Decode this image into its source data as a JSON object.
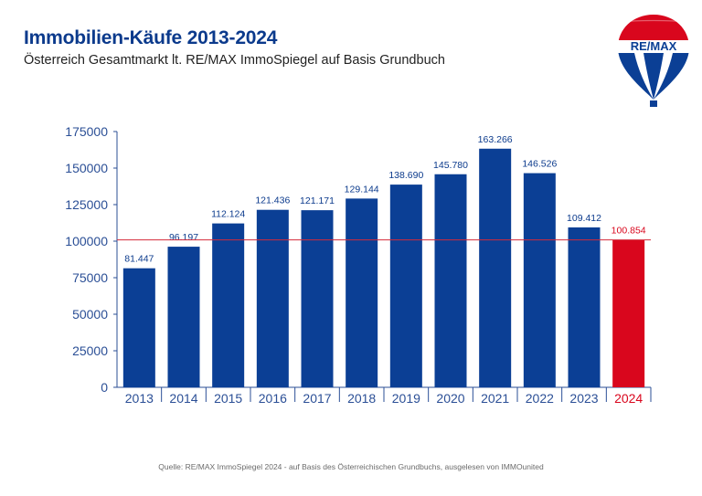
{
  "header": {
    "title": "Immobilien-Käufe 2013-2024",
    "subtitle": "Österreich Gesamtmarkt lt. RE/MAX ImmoSpiegel auf Basis Grundbuch"
  },
  "logo": {
    "text": "RE/MAX",
    "icon": "hot-air-balloon-logo"
  },
  "source_note": "Quelle: RE/MAX ImmoSpiegel 2024 - auf Basis des Österreichischen Grundbuchs, ausgelesen von IMMOunited",
  "colors": {
    "bar": "#0b3f95",
    "highlight_bar": "#d9061d",
    "reference_line": "#d42a3a",
    "label": "#0b3a8c",
    "highlight_label": "#d9061d",
    "axis": "#2b4f96"
  },
  "chart_data": {
    "type": "bar",
    "categories": [
      "2013",
      "2014",
      "2015",
      "2016",
      "2017",
      "2018",
      "2019",
      "2020",
      "2021",
      "2022",
      "2023",
      "2024"
    ],
    "values": [
      81447,
      96197,
      112124,
      121436,
      121171,
      129144,
      138690,
      145780,
      163266,
      146526,
      109412,
      100854
    ],
    "value_labels": [
      "81.447",
      "96.197",
      "112.124",
      "121.436",
      "121.171",
      "129.144",
      "138.690",
      "145.780",
      "163.266",
      "146.526",
      "109.412",
      "100.854"
    ],
    "highlight_category": "2024",
    "reference_line_value": 100854,
    "yticks": [
      0,
      25000,
      50000,
      75000,
      100000,
      125000,
      150000,
      175000
    ],
    "ylim": [
      0,
      175000
    ],
    "grid": false,
    "title": "",
    "xlabel": "",
    "ylabel": ""
  }
}
